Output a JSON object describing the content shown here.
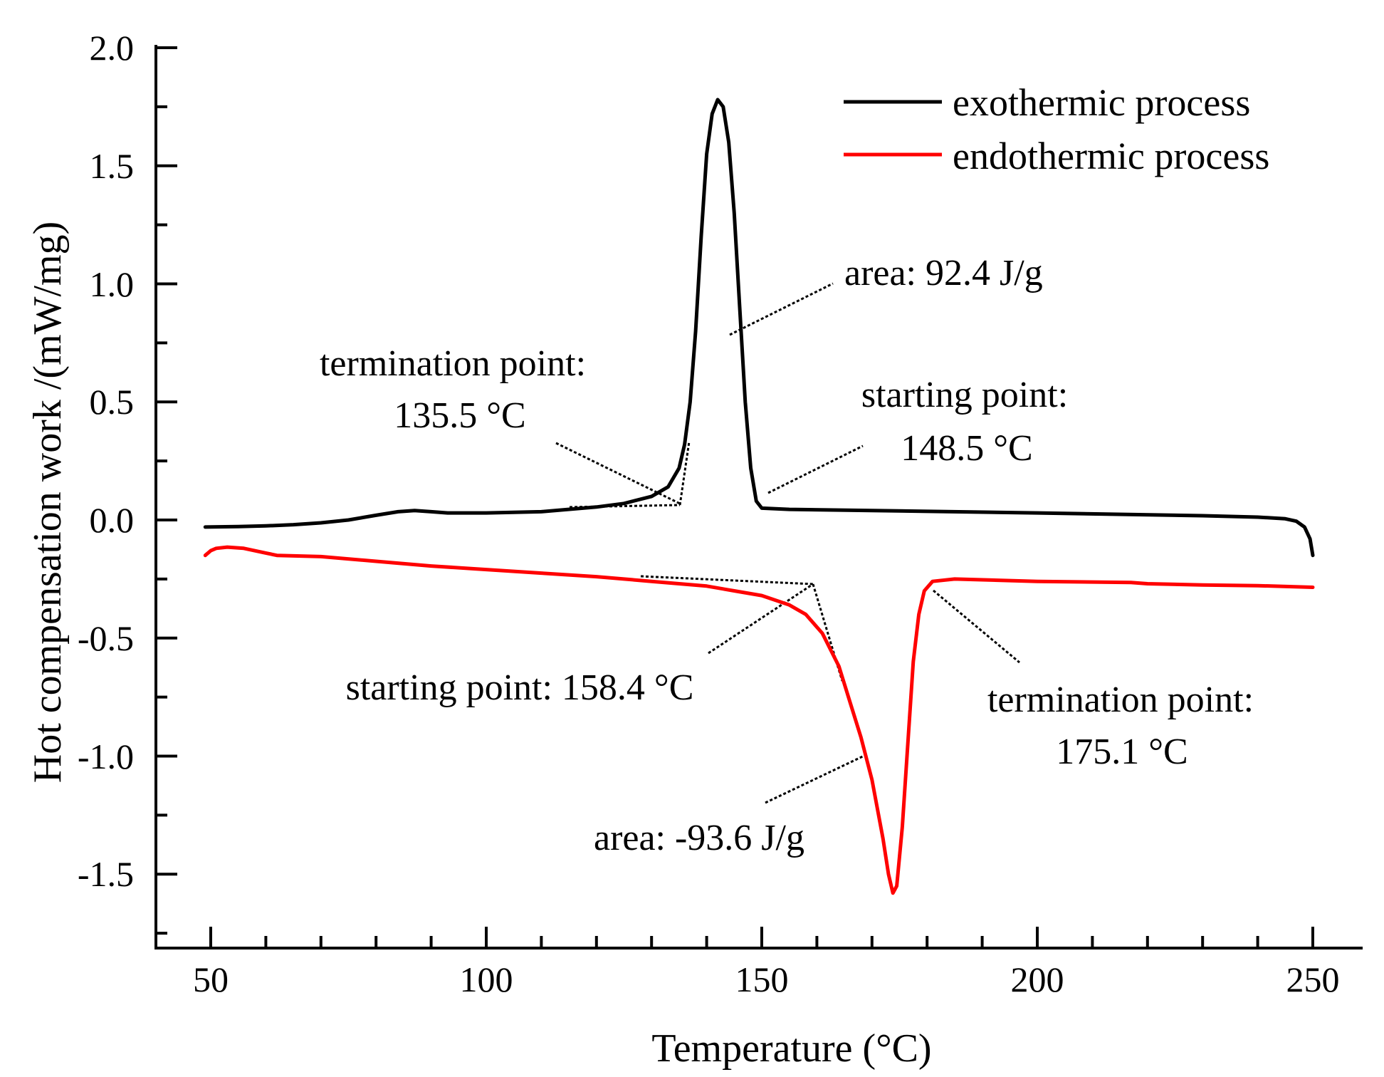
{
  "chart_data": {
    "type": "line",
    "title": "",
    "xlabel": "Temperature (°C)",
    "ylabel": "Hot compensation work /(mW/mg)",
    "xlim": [
      40,
      252
    ],
    "ylim": [
      -1.8,
      2.0
    ],
    "x_ticks": [
      50,
      100,
      150,
      200,
      250
    ],
    "x_tick_labels": [
      "50",
      "100",
      "150",
      "200",
      "250"
    ],
    "y_ticks": [
      -1.5,
      -1.0,
      -0.5,
      0.0,
      0.5,
      1.0,
      1.5,
      2.0
    ],
    "y_tick_labels": [
      "-1.5",
      "-1.0",
      "-0.5",
      "0.0",
      "0.5",
      "1.0",
      "1.5",
      "2.0"
    ],
    "grid": false,
    "legend_position": "top-right",
    "series": [
      {
        "name": "exothermic process",
        "color": "#000000",
        "points": [
          [
            49,
            -0.03
          ],
          [
            55,
            -0.028
          ],
          [
            60,
            -0.025
          ],
          [
            65,
            -0.02
          ],
          [
            70,
            -0.012
          ],
          [
            75,
            0.0
          ],
          [
            80,
            0.02
          ],
          [
            84,
            0.035
          ],
          [
            87,
            0.04
          ],
          [
            90,
            0.035
          ],
          [
            93,
            0.03
          ],
          [
            100,
            0.03
          ],
          [
            110,
            0.035
          ],
          [
            120,
            0.055
          ],
          [
            125,
            0.07
          ],
          [
            130,
            0.1
          ],
          [
            133,
            0.14
          ],
          [
            135,
            0.22
          ],
          [
            136,
            0.32
          ],
          [
            137,
            0.5
          ],
          [
            138,
            0.8
          ],
          [
            139,
            1.2
          ],
          [
            140,
            1.55
          ],
          [
            141,
            1.72
          ],
          [
            142,
            1.78
          ],
          [
            143,
            1.75
          ],
          [
            144,
            1.6
          ],
          [
            145,
            1.3
          ],
          [
            146,
            0.9
          ],
          [
            147,
            0.5
          ],
          [
            148,
            0.22
          ],
          [
            149,
            0.08
          ],
          [
            150,
            0.05
          ],
          [
            155,
            0.045
          ],
          [
            170,
            0.04
          ],
          [
            200,
            0.03
          ],
          [
            230,
            0.018
          ],
          [
            240,
            0.012
          ],
          [
            245,
            0.005
          ],
          [
            247,
            -0.005
          ],
          [
            248.5,
            -0.03
          ],
          [
            249.5,
            -0.08
          ],
          [
            250,
            -0.15
          ]
        ]
      },
      {
        "name": "endothermic process",
        "color": "#ff0000",
        "points": [
          [
            49,
            -0.15
          ],
          [
            50,
            -0.13
          ],
          [
            51,
            -0.12
          ],
          [
            53,
            -0.115
          ],
          [
            56,
            -0.12
          ],
          [
            60,
            -0.14
          ],
          [
            62,
            -0.15
          ],
          [
            70,
            -0.155
          ],
          [
            80,
            -0.175
          ],
          [
            90,
            -0.195
          ],
          [
            100,
            -0.21
          ],
          [
            110,
            -0.225
          ],
          [
            120,
            -0.24
          ],
          [
            130,
            -0.26
          ],
          [
            140,
            -0.28
          ],
          [
            145,
            -0.3
          ],
          [
            150,
            -0.32
          ],
          [
            155,
            -0.36
          ],
          [
            158,
            -0.4
          ],
          [
            161,
            -0.48
          ],
          [
            164,
            -0.62
          ],
          [
            166,
            -0.77
          ],
          [
            168,
            -0.92
          ],
          [
            170,
            -1.1
          ],
          [
            172,
            -1.35
          ],
          [
            173,
            -1.5
          ],
          [
            173.8,
            -1.58
          ],
          [
            174.5,
            -1.55
          ],
          [
            175.5,
            -1.3
          ],
          [
            176.5,
            -0.95
          ],
          [
            177.5,
            -0.6
          ],
          [
            178.5,
            -0.4
          ],
          [
            179.5,
            -0.3
          ],
          [
            181,
            -0.26
          ],
          [
            185,
            -0.25
          ],
          [
            200,
            -0.26
          ],
          [
            217,
            -0.265
          ],
          [
            220,
            -0.27
          ],
          [
            230,
            -0.275
          ],
          [
            240,
            -0.278
          ],
          [
            250,
            -0.285
          ]
        ]
      }
    ],
    "annotations": [
      {
        "text": "area: 92.4 J/g"
      },
      {
        "text": "termination point:"
      },
      {
        "text": "135.5 °C"
      },
      {
        "text": "starting point:"
      },
      {
        "text": "148.5 °C"
      },
      {
        "text": "starting point: 158.4 °C"
      },
      {
        "text": "termination point:"
      },
      {
        "text": "175.1 °C"
      },
      {
        "text": "area: -93.6 J/g"
      }
    ]
  }
}
